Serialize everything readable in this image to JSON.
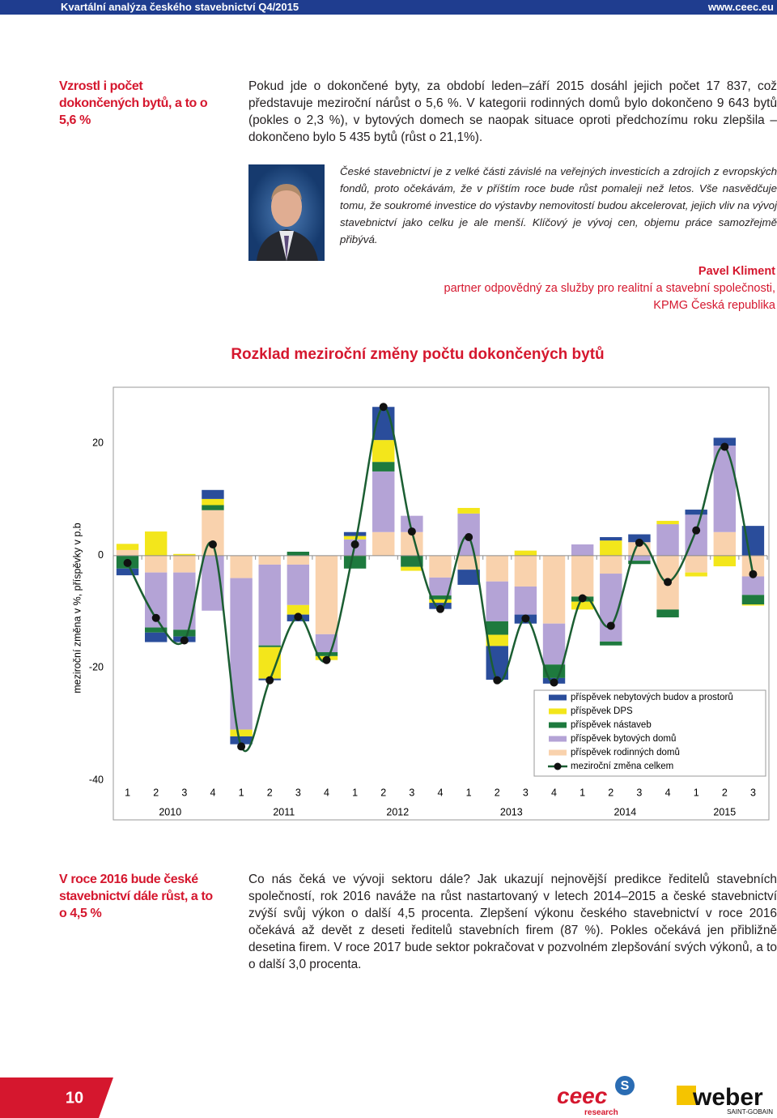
{
  "header": {
    "title": "Kvartální analýza českého stavebnictví Q4/2015",
    "url": "www.ceec.eu"
  },
  "section1": {
    "heading": "Vzrostl i počet dokončených bytů, a to o 5,6 %",
    "body": "Pokud jde o dokončené byty, za období leden–září 2015 dosáhl jejich počet 17 837, což představuje meziroční nárůst o 5,6 %. V kategorii rodinných domů bylo dokončeno 9 643 bytů (pokles o 2,3 %), v bytových domech se naopak situace oproti předchozímu roku zlepšila – dokončeno bylo 5 435 bytů (růst o 21,1%).",
    "quote": "České stavebnictví je z velké části závislé na veřejných investicích a zdrojích z evropských fondů, proto očekávám, že v příštím roce bude růst pomaleji než letos. Vše nasvědčuje tomu, že soukromé investice do výstavby nemovitostí budou akcelerovat, jejich vliv na vývoj stavebnictví jako celku je ale menší. Klíčový je vývoj cen, objemu práce samozřejmě přibývá.",
    "author": {
      "name": "Pavel Kliment",
      "role": "partner odpovědný za služby pro realitní a stavební společnosti,",
      "company": "KPMG Česká republika"
    }
  },
  "chart_data": {
    "type": "bar",
    "title": "Rozklad meziroční změny počtu dokončených bytů",
    "y_label": "meziroční změna v %, příspěvky v p.b",
    "categories": [
      "1",
      "2",
      "3",
      "4",
      "1",
      "2",
      "3",
      "4",
      "1",
      "2",
      "3",
      "4",
      "1",
      "2",
      "3",
      "4",
      "1",
      "2",
      "3",
      "4",
      "1",
      "2",
      "3"
    ],
    "years": [
      "2010",
      "2011",
      "2012",
      "2013",
      "2014",
      "2015"
    ],
    "ylim": [
      -40,
      30
    ],
    "yticks": [
      -40,
      -20,
      0,
      20
    ],
    "legend": "lower right",
    "series": [
      {
        "name": "příspěvek nebytových budov a prostorů",
        "color": "#2a4d9b",
        "values": [
          -1.2,
          -1.7,
          -1.0,
          1.6,
          -1.4,
          -0.3,
          -1.2,
          null,
          0.7,
          5.9,
          null,
          -1.1,
          -2.7,
          -6.0,
          -1.6,
          -1.0,
          null,
          0.6,
          1.4,
          null,
          0.9,
          1.4,
          5.3
        ]
      },
      {
        "name": "příspěvek DPS",
        "color": "#f3e61b",
        "values": [
          1.1,
          4.3,
          0.3,
          1.1,
          -1.2,
          -5.6,
          -1.7,
          -0.7,
          0.6,
          3.9,
          -0.7,
          -0.6,
          1.0,
          -2.0,
          0.9,
          null,
          -1.4,
          2.7,
          null,
          0.6,
          -0.7,
          -1.9,
          -0.2
        ]
      },
      {
        "name": "příspěvek nástaveb",
        "color": "#1e7a3e",
        "values": [
          -2.3,
          -0.9,
          -1.2,
          0.9,
          null,
          -0.3,
          0.7,
          -0.7,
          -2.3,
          1.7,
          -2.0,
          -0.7,
          null,
          -2.4,
          null,
          -2.4,
          -0.9,
          -0.7,
          -0.6,
          -1.4,
          null,
          null,
          -1.7
        ]
      },
      {
        "name": "příspěvek bytových domů",
        "color": "#b4a3d6",
        "values": [
          null,
          -9.8,
          -10.2,
          -9.8,
          -27.0,
          -14.4,
          -7.2,
          -3.2,
          2.9,
          10.8,
          2.9,
          -3.2,
          7.5,
          -7.1,
          -5.0,
          -7.3,
          2.0,
          -12.1,
          -0.9,
          5.6,
          7.3,
          15.4,
          -3.3
        ]
      },
      {
        "name": "příspěvek rodinných domů",
        "color": "#f9d2ad",
        "values": [
          1.0,
          -3.0,
          -3.0,
          8.1,
          -4.0,
          -1.6,
          -1.6,
          -14.0,
          null,
          4.2,
          4.2,
          -3.9,
          -2.5,
          -4.6,
          -5.5,
          -12.1,
          -7.3,
          -3.2,
          2.4,
          -9.6,
          -3.0,
          4.2,
          -3.7
        ]
      },
      {
        "name": "meziroční změna celkem",
        "type": "line",
        "color": "#1b5e32",
        "marker_color": "#111111",
        "values": [
          -1.3,
          -11.1,
          -15.1,
          2.0,
          -34.0,
          -22.2,
          -10.9,
          -18.6,
          2.0,
          26.5,
          4.3,
          -9.5,
          3.3,
          -22.2,
          -11.2,
          -22.6,
          -7.6,
          -12.5,
          2.3,
          -4.7,
          4.5,
          19.4,
          -3.3
        ]
      }
    ]
  },
  "section2": {
    "heading": "V roce 2016 bude české stavebnictví dále růst, a to o 4,5 %",
    "body": "Co nás čeká ve vývoji sektoru dále? Jak ukazují nejnovější predikce ředitelů stavebních společností, rok 2016 naváže na růst nastartovaný v letech 2014–2015 a české stavebnictví zvýší svůj výkon o další 4,5 procenta. Zlepšení výkonu českého stavebnictví v roce 2016 očekává až devět z deseti ředitelů stavebních firem (87 %). Pokles očekává jen přibližně desetina firem. V roce 2017 bude sektor pokračovat v pozvolném zlepšování svých výkonů, a to o další 3,0 procenta."
  },
  "footer": {
    "page": 10,
    "logo1": {
      "name": "ceec",
      "sub": "research"
    },
    "logo2": {
      "name": "weber",
      "sub": "SAINT-GOBAIN"
    }
  }
}
